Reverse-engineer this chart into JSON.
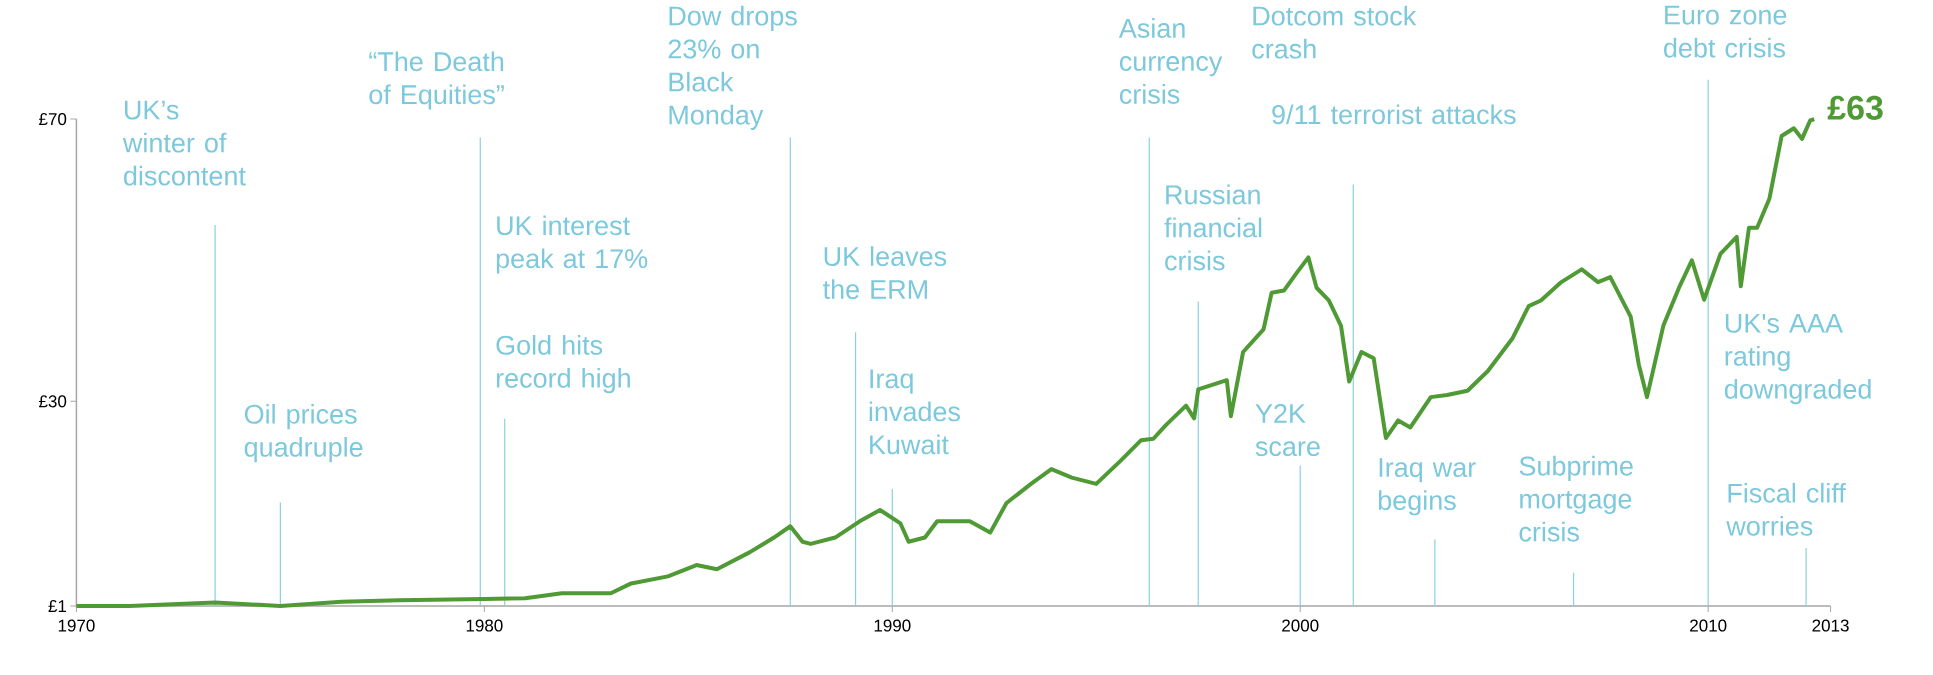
{
  "chart_data": {
    "type": "line",
    "x": [
      1970,
      1971.3,
      1973.4,
      1975.0,
      1976.5,
      1977.9,
      1980,
      1981.0,
      1981.9,
      1983.1,
      1983.6,
      1984.5,
      1985.2,
      1985.7,
      1986.5,
      1987.1,
      1987.5,
      1987.8,
      1988.0,
      1988.6,
      1989.2,
      1989.7,
      1990.2,
      1990.4,
      1990.8,
      1991.1,
      1991.9,
      1992.4,
      1992.8,
      1993.4,
      1993.9,
      1994.4,
      1995.0,
      1995.6,
      1996.1,
      1996.4,
      1996.7,
      1997.2,
      1997.4,
      1997.5,
      1998.2,
      1998.3,
      1998.6,
      1999.1,
      1999.3,
      1999.6,
      1999.9,
      2000.2,
      2000.4,
      2000.7,
      2001.0,
      2001.2,
      2001.5,
      2001.8,
      2002.1,
      2002.4,
      2002.7,
      2003.2,
      2003.6,
      2004.1,
      2004.6,
      2005.2,
      2005.6,
      2005.9,
      2006.4,
      2006.9,
      2007.3,
      2007.6,
      2008.1,
      2008.3,
      2008.5,
      2008.9,
      2009.3,
      2009.6,
      2009.9,
      2010.3,
      2010.7,
      2010.8,
      2011.0,
      2011.2,
      2011.5,
      2011.8,
      2012.1,
      2012.3,
      2012.5,
      2012.6
    ],
    "series": [
      {
        "color": "#4f9a35",
        "values": [
          1,
          1,
          1.5,
          1,
          1.6,
          1.8,
          2.0,
          2.1,
          2.8,
          2.8,
          4.2,
          5.2,
          6.8,
          6.2,
          8.6,
          10.7,
          12.3,
          10.1,
          9.8,
          10.7,
          13.0,
          14.6,
          12.7,
          10.1,
          10.7,
          13.0,
          13.0,
          11.4,
          15.6,
          18.3,
          20.4,
          19.2,
          18.3,
          21.6,
          24.5,
          24.7,
          26.6,
          29.4,
          27.6,
          31.7,
          33.0,
          27.9,
          37.0,
          40.2,
          45.4,
          45.7,
          48.1,
          50.4,
          46.1,
          44.3,
          40.7,
          32.8,
          37.0,
          36.1,
          24.8,
          27.3,
          26.3,
          30.6,
          30.9,
          31.5,
          34.3,
          38.9,
          43.5,
          44.3,
          46.9,
          48.7,
          46.9,
          47.6,
          42.0,
          35.2,
          30.6,
          40.7,
          46.3,
          50.0,
          44.4,
          50.9,
          53.3,
          46.3,
          54.6,
          54.6,
          58.7,
          67.6,
          68.7,
          67.2,
          69.8,
          70.0
        ]
      }
    ],
    "xlim": [
      1970,
      2013
    ],
    "xticks": [
      1970,
      1980,
      1990,
      2000,
      2010,
      2013
    ],
    "ylim": [
      1,
      70
    ],
    "yticks": [
      {
        "value": 1,
        "label": "£1"
      },
      {
        "value": 30,
        "label": "£30"
      },
      {
        "value": 70,
        "label": "£70"
      }
    ],
    "ref_lines": [
      {
        "axis": "x",
        "value": 1973.4,
        "label": "UK’s winter of discontent",
        "color": "#8ccfe0"
      },
      {
        "axis": "x",
        "value": 1975.0,
        "label": "Oil prices quadruple",
        "color": "#8ccfe0"
      },
      {
        "axis": "x",
        "value": 1979.9,
        "label": "“The Death of Equities”",
        "color": "#8ccfe0"
      },
      {
        "axis": "x",
        "value": 1980.5,
        "label": "Gold hits record high",
        "color": "#8ccfe0"
      },
      {
        "axis": "x",
        "value": 1987.5,
        "label": "Dow drops 23% on Black Monday",
        "color": "#8ccfe0"
      },
      {
        "axis": "x",
        "value": 1989.1,
        "label": "UK leaves the ERM",
        "color": "#8ccfe0"
      },
      {
        "axis": "x",
        "value": 1990.0,
        "label": "Iraq invades Kuwait",
        "color": "#8ccfe0"
      },
      {
        "axis": "x",
        "value": 1996.3,
        "label": "Asian currency crisis",
        "color": "#8ccfe0"
      },
      {
        "axis": "x",
        "value": 1997.5,
        "label": "Russian financial crisis",
        "color": "#8ccfe0"
      },
      {
        "axis": "x",
        "value": 2000.0,
        "label": "Y2K scare",
        "color": "#8ccfe0"
      },
      {
        "axis": "x",
        "value": 2001.3,
        "label": "9/11 terrorist attacks",
        "color": "#8ccfe0"
      },
      {
        "axis": "x",
        "value": 2003.3,
        "label": "Iraq war begins",
        "color": "#8ccfe0"
      },
      {
        "axis": "x",
        "value": 2006.7,
        "label": "Subprime mortgage crisis",
        "color": "#8ccfe0"
      },
      {
        "axis": "x",
        "value": 2010.0,
        "label": "Euro zone debt crisis",
        "color": "#8ccfe0"
      },
      {
        "axis": "x",
        "value": 2012.4,
        "label": "Fiscal cliff worries",
        "color": "#8ccfe0"
      }
    ],
    "annotations": [
      "UK interest peak at 17%",
      "Dotcom stock crash",
      "UK's AAA rating downgraded",
      "£63"
    ]
  }
}
